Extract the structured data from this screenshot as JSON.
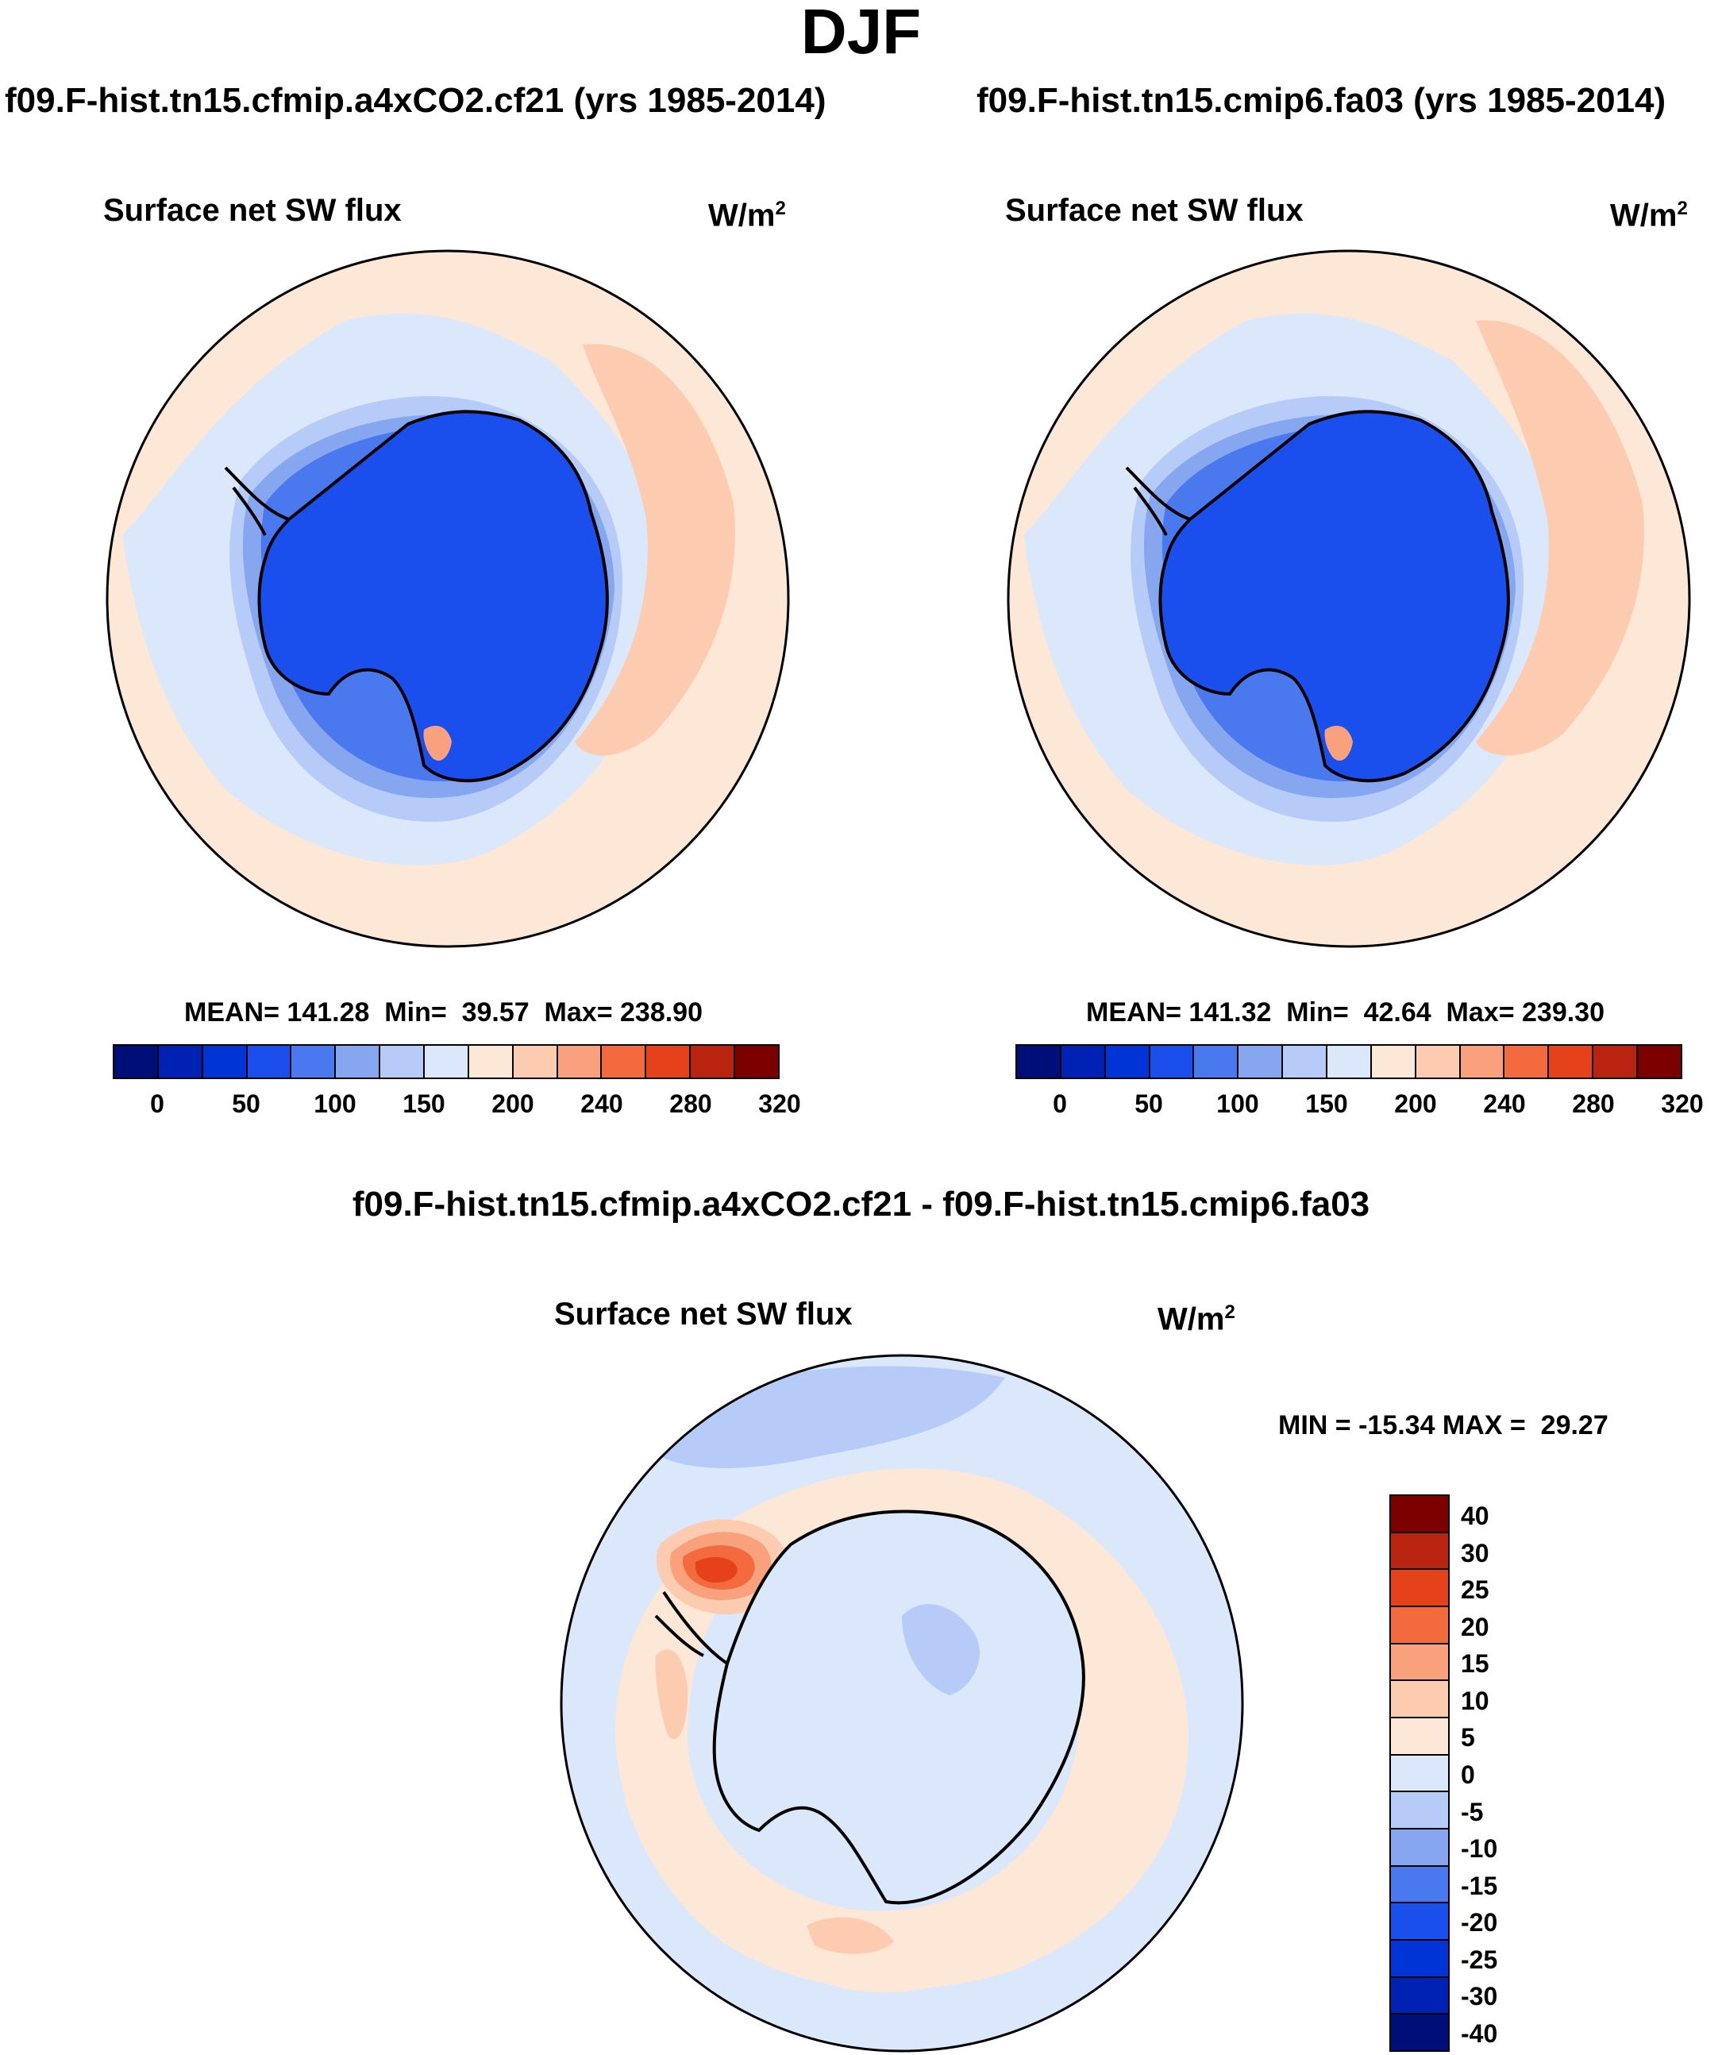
{
  "figure_title": "DJF",
  "panels": [
    {
      "case_title": "f09.F-hist.tn15.cfmip.a4xCO2.cf21 (yrs 1985-2014)",
      "variable": "Surface net SW flux",
      "units_base": "W/m",
      "units_exp": "2",
      "stats_text": "MEAN= 141.28  Min=  39.57  Max= 238.90",
      "map_name": "antarctic-map-cf21"
    },
    {
      "case_title": "f09.F-hist.tn15.cmip6.fa03 (yrs 1985-2014)",
      "variable": "Surface net SW flux",
      "units_base": "W/m",
      "units_exp": "2",
      "stats_text": "MEAN= 141.32  Min=  42.64  Max= 239.30",
      "map_name": "antarctic-map-fa03"
    }
  ],
  "difference_panel": {
    "case_title": "f09.F-hist.tn15.cfmip.a4xCO2.cf21 - f09.F-hist.tn15.cmip6.fa03",
    "variable": "Surface net SW flux",
    "units_base": "W/m",
    "units_exp": "2",
    "stats_text": "MIN = -15.34 MAX =  29.27"
  },
  "colorbar_abs": {
    "colors": [
      "#000e7a",
      "#0022b4",
      "#0034d6",
      "#1a4fee",
      "#4a78ee",
      "#86a6f0",
      "#b6cbf7",
      "#dbe8fb",
      "#fde7d6",
      "#fccbb0",
      "#f9a07c",
      "#f36a3e",
      "#e5411a",
      "#b82410",
      "#7d0000"
    ],
    "labels": [
      "0",
      "50",
      "100",
      "150",
      "200",
      "240",
      "280",
      "320"
    ]
  },
  "colorbar_diff": {
    "colors": [
      "#7d0000",
      "#b82410",
      "#e5411a",
      "#f36a3e",
      "#f9a07c",
      "#fccbb0",
      "#fde7d6",
      "#dbe8fb",
      "#b6cbf7",
      "#86a6f0",
      "#4a78ee",
      "#1a4fee",
      "#0034d6",
      "#0022b4",
      "#000e7a"
    ],
    "labels": [
      "40",
      "30",
      "25",
      "20",
      "15",
      "10",
      "5",
      "0",
      "-5",
      "-10",
      "-15",
      "-20",
      "-25",
      "-30",
      "-40"
    ]
  },
  "map_colors": {
    "ocean_warm": "#fde7d6",
    "ocean_cool": "#dbe8fb",
    "band_light": "#b6cbf7",
    "band_mid": "#86a6f0",
    "band_dark": "#4a78ee",
    "ice": "#1a4fee",
    "warm_band": "#fccbb0",
    "hot": "#f36a3e",
    "hotter": "#e5411a"
  }
}
